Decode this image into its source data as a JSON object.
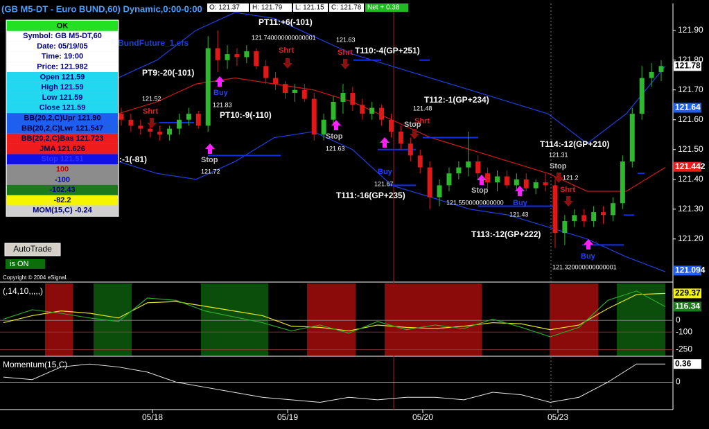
{
  "title": "(GB M5-DT - Euro BUND,60) Dynamic,0:00-0:00",
  "quote": {
    "open": "O: 121.37",
    "high": "H: 121.79",
    "low": "L: 121.15",
    "close": "C: 121.78",
    "net": "Net + 0.38"
  },
  "script_name": "BundFuture_1.efs",
  "info_panel": {
    "header": "OK",
    "rows": [
      {
        "text": "Symbol: GB M5-DT,60",
        "bg": "#ffffff",
        "color": "#000080"
      },
      {
        "text": "Date: 05/19/05",
        "bg": "#ffffff",
        "color": "#000080"
      },
      {
        "text": "Time: 19:00",
        "bg": "#ffffff",
        "color": "#000080"
      },
      {
        "text": "Price: 121.982",
        "bg": "#ffffff",
        "color": "#000080"
      },
      {
        "text": "Open 121.59",
        "bg": "#22d8f0",
        "color": "#000080"
      },
      {
        "text": "High 121.59",
        "bg": "#22d8f0",
        "color": "#000080"
      },
      {
        "text": "Low 121.59",
        "bg": "#22d8f0",
        "color": "#000080"
      },
      {
        "text": "Close 121.59",
        "bg": "#22d8f0",
        "color": "#000080"
      },
      {
        "text": "BB(20,2,C)Upr 121.90",
        "bg": "#1f5ff0",
        "color": "#000040"
      },
      {
        "text": "BB(20,2,C)Lwr 121.547",
        "bg": "#1f5ff0",
        "color": "#000040"
      },
      {
        "text": "BB(20,2,C)Bas 121.723",
        "bg": "#ee1c1c",
        "color": "#000040"
      },
      {
        "text": "JMA 121.626",
        "bg": "#ee1c1c",
        "color": "#000040"
      },
      {
        "text": "Stop 121.51",
        "bg": "#1010e8",
        "color": "#3030ff"
      },
      {
        "text": "100",
        "bg": "#8c8c8c",
        "color": "#cc0000"
      },
      {
        "text": "-100",
        "bg": "#8c8c8c",
        "color": "#0000cc"
      },
      {
        "text": "-102.43",
        "bg": "#1c7a1c",
        "color": "#000080"
      },
      {
        "text": "-82.2",
        "bg": "#f5f500",
        "color": "#000080"
      },
      {
        "text": "MOM(15,C) -0.24",
        "bg": "#d0d0d0",
        "color": "#000080"
      }
    ]
  },
  "buttons": {
    "autotrade": "AutoTrade",
    "status": "is ON"
  },
  "copyright": "Copyright © 2004 eSignal.",
  "price_chart": {
    "ylim": [
      121.06,
      121.99
    ],
    "yticks": [
      {
        "value": 121.9,
        "label": "121.90"
      },
      {
        "value": 121.8,
        "label": "121.80"
      },
      {
        "value": 121.7,
        "label": "121.70"
      },
      {
        "value": 121.6,
        "label": "121.60"
      },
      {
        "value": 121.5,
        "label": "121.50"
      },
      {
        "value": 121.4,
        "label": "121.40"
      },
      {
        "value": 121.3,
        "label": "121.30"
      },
      {
        "value": 121.2,
        "label": "121.20"
      }
    ],
    "badges": [
      {
        "value": 121.78,
        "label": "121.78",
        "color": "#ffffff"
      },
      {
        "value": 121.64,
        "label": "121.64",
        "color": "#1f5ff0"
      },
      {
        "value": 121.442,
        "label": "121.442",
        "color": "#ee1c1c"
      },
      {
        "value": 121.094,
        "label": "121.094",
        "color": "#1f5ff0"
      }
    ],
    "candles": [
      [
        121.62,
        121.64,
        121.58,
        121.6
      ],
      [
        121.6,
        121.62,
        121.56,
        121.58
      ],
      [
        121.58,
        121.6,
        121.55,
        121.57
      ],
      [
        121.57,
        121.59,
        121.54,
        121.56
      ],
      [
        121.56,
        121.58,
        121.53,
        121.55
      ],
      [
        121.55,
        121.58,
        121.53,
        121.57
      ],
      [
        121.57,
        121.62,
        121.55,
        121.6
      ],
      [
        121.6,
        121.64,
        121.58,
        121.62
      ],
      [
        121.62,
        121.63,
        121.57,
        121.58
      ],
      [
        121.58,
        121.88,
        121.56,
        121.84
      ],
      [
        121.84,
        121.9,
        121.76,
        121.8
      ],
      [
        121.8,
        121.85,
        121.77,
        121.82
      ],
      [
        121.82,
        121.84,
        121.78,
        121.81
      ],
      [
        121.81,
        121.85,
        121.79,
        121.83
      ],
      [
        121.83,
        121.84,
        121.77,
        121.78
      ],
      [
        121.78,
        121.8,
        121.72,
        121.74
      ],
      [
        121.74,
        121.76,
        121.7,
        121.72
      ],
      [
        121.72,
        121.73,
        121.67,
        121.69
      ],
      [
        121.69,
        121.72,
        121.66,
        121.7
      ],
      [
        121.7,
        121.72,
        121.66,
        121.67
      ],
      [
        121.67,
        121.69,
        121.53,
        121.55
      ],
      [
        121.55,
        121.62,
        121.53,
        121.6
      ],
      [
        121.6,
        121.68,
        121.58,
        121.66
      ],
      [
        121.66,
        121.72,
        121.62,
        121.69
      ],
      [
        121.69,
        121.71,
        121.63,
        121.65
      ],
      [
        121.65,
        121.67,
        121.6,
        121.62
      ],
      [
        121.62,
        121.66,
        121.6,
        121.64
      ],
      [
        121.64,
        121.65,
        121.58,
        121.6
      ],
      [
        121.6,
        121.62,
        121.54,
        121.56
      ],
      [
        121.56,
        121.58,
        121.5,
        121.52
      ],
      [
        121.52,
        121.54,
        121.46,
        121.48
      ],
      [
        121.48,
        121.5,
        121.42,
        121.44
      ],
      [
        121.44,
        121.46,
        121.3,
        121.34
      ],
      [
        121.34,
        121.4,
        121.31,
        121.38
      ],
      [
        121.38,
        121.44,
        121.36,
        121.42
      ],
      [
        121.42,
        121.46,
        121.4,
        121.44
      ],
      [
        121.44,
        121.56,
        121.41,
        121.46
      ],
      [
        121.46,
        121.48,
        121.4,
        121.42
      ],
      [
        121.42,
        121.44,
        121.37,
        121.39
      ],
      [
        121.39,
        121.43,
        121.36,
        121.41
      ],
      [
        121.41,
        121.43,
        121.37,
        121.38
      ],
      [
        121.38,
        121.42,
        121.36,
        121.4
      ],
      [
        121.4,
        121.42,
        121.36,
        121.37
      ],
      [
        121.37,
        121.4,
        121.35,
        121.39
      ],
      [
        121.39,
        121.42,
        121.36,
        121.38
      ],
      [
        121.38,
        121.4,
        121.17,
        121.22
      ],
      [
        121.22,
        121.28,
        121.18,
        121.26
      ],
      [
        121.26,
        121.3,
        121.24,
        121.28
      ],
      [
        121.28,
        121.3,
        121.24,
        121.26
      ],
      [
        121.26,
        121.31,
        121.24,
        121.29
      ],
      [
        121.29,
        121.31,
        121.25,
        121.28
      ],
      [
        121.28,
        121.34,
        121.26,
        121.32
      ],
      [
        121.32,
        121.48,
        121.3,
        121.46
      ],
      [
        121.46,
        121.64,
        121.44,
        121.62
      ],
      [
        121.62,
        121.78,
        121.6,
        121.74
      ],
      [
        121.74,
        121.79,
        121.71,
        121.76
      ],
      [
        121.76,
        121.8,
        121.73,
        121.78
      ]
    ],
    "up_color": "#2db82d",
    "down_color": "#e01818",
    "bands": [
      {
        "values": [
          121.74,
          121.8,
          121.9,
          121.96,
          121.94,
          121.88,
          121.82,
          121.78,
          121.74,
          121.7,
          121.66,
          121.62,
          121.52,
          121.62,
          121.78
        ],
        "color": "#2040e0"
      },
      {
        "values": [
          121.62,
          121.66,
          121.72,
          121.74,
          121.72,
          121.7,
          121.66,
          121.6,
          121.54,
          121.5,
          121.46,
          121.42,
          121.36,
          121.36,
          121.44
        ],
        "color": "#d01818"
      },
      {
        "values": [
          121.46,
          121.42,
          121.4,
          121.46,
          121.54,
          121.56,
          121.5,
          121.38,
          121.34,
          121.3,
          121.28,
          121.24,
          121.2,
          121.14,
          121.09
        ],
        "color": "#2040e0"
      }
    ],
    "annotations": [
      "PT11:+6(-101)",
      "121.740000000000001",
      "121.63",
      "Shrt",
      "Shrt",
      "T110:-4(GP+251)",
      "PT9:-20(-101)",
      "Buy",
      "121.52",
      "121.83",
      "Shrt",
      "PT10:-9(-110)",
      "T112:-1(GP+234)",
      "121.48",
      "Shrt",
      "Stop",
      "Stop",
      "121.63",
      "T114:-12(GP+210)",
      "Stop",
      "121.72",
      "Buy",
      "121.31",
      "Stop",
      "121.2",
      "Shrt",
      "121.67",
      "T111:-16(GP+235)",
      "Stop",
      "121.5500000000000",
      "Buy",
      "121.43",
      "T113:-12(GP+222)",
      "Buy",
      "121.320000000000001",
      ":-1(-81)"
    ]
  },
  "indicator": {
    "label": "(,14,10,,,,,)",
    "ylim": [
      -300,
      320
    ],
    "yticks": [
      0,
      -100,
      -250
    ],
    "badges": [
      {
        "value": 229.37,
        "label": "229.37",
        "color": "#f5f500"
      },
      {
        "value": 116.34,
        "label": "116.34",
        "color": "#1c7a1c"
      }
    ],
    "series": [
      {
        "values": [
          -20,
          40,
          80,
          60,
          20,
          150,
          160,
          120,
          80,
          40,
          -50,
          -60,
          -90,
          -40,
          -60,
          -70,
          -50,
          -20,
          -30,
          -80,
          -40,
          100,
          220,
          229.37
        ],
        "color": "#e8e820"
      },
      {
        "values": [
          10,
          90,
          60,
          20,
          -10,
          190,
          170,
          80,
          30,
          -20,
          -90,
          -40,
          -110,
          -10,
          -80,
          -40,
          -70,
          10,
          -60,
          -140,
          -60,
          170,
          250,
          116.34
        ],
        "color": "#2ea82e"
      }
    ]
  },
  "momentum": {
    "label": "Momentum(15,C)",
    "ylim": [
      -0.53,
      0.5
    ],
    "yticks": [
      0
    ],
    "badges": [
      {
        "value": 0.36,
        "label": "0.36",
        "color": "#ffffff"
      }
    ],
    "values": [
      0.1,
      0.05,
      0.3,
      0.36,
      0.3,
      0.2,
      0.0,
      -0.1,
      -0.2,
      -0.3,
      -0.35,
      -0.4,
      -0.3,
      -0.35,
      -0.3,
      -0.3,
      -0.35,
      -0.2,
      -0.25,
      -0.4,
      -0.3,
      0.0,
      0.36,
      0.36
    ],
    "color": "#e8e8e8"
  },
  "dates": [
    "05/18",
    "05/19",
    "05/20",
    "05/23"
  ]
}
